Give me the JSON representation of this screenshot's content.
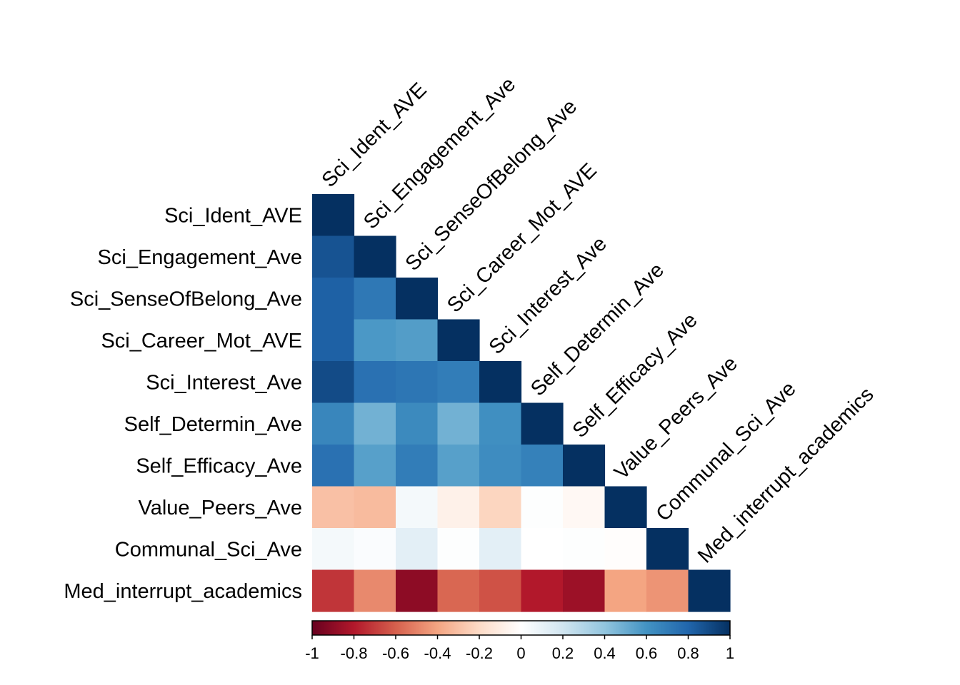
{
  "chart_data": {
    "type": "heatmap",
    "variables": [
      "Sci_Ident_AVE",
      "Sci_Engagement_Ave",
      "Sci_SenseOfBelong_Ave",
      "Sci_Career_Mot_AVE",
      "Sci_Interest_Ave",
      "Self_Determin_Ave",
      "Self_Efficacy_Ave",
      "Value_Peers_Ave",
      "Communal_Sci_Ave",
      "Med_interrupt_academics"
    ],
    "matrix_lower": [
      [
        1
      ],
      [
        0.87,
        1
      ],
      [
        0.82,
        0.72,
        1
      ],
      [
        0.82,
        0.58,
        0.56,
        1
      ],
      [
        0.9,
        0.75,
        0.73,
        0.7,
        1
      ],
      [
        0.66,
        0.48,
        0.64,
        0.48,
        0.62,
        1
      ],
      [
        0.75,
        0.55,
        0.7,
        0.55,
        0.63,
        0.68,
        1
      ],
      [
        -0.3,
        -0.32,
        0.05,
        -0.08,
        -0.22,
        0.01,
        -0.04,
        1
      ],
      [
        0.05,
        0.02,
        0.12,
        0.01,
        0.12,
        0.0,
        0.01,
        -0.01,
        1
      ],
      [
        -0.72,
        -0.48,
        -0.9,
        -0.58,
        -0.64,
        -0.8,
        -0.86,
        -0.4,
        -0.45,
        1
      ]
    ],
    "colorbar": {
      "range": [
        -1,
        1
      ],
      "ticks": [
        "-1",
        "-0.8",
        "-0.6",
        "-0.4",
        "-0.2",
        "0",
        "0.2",
        "0.4",
        "0.6",
        "0.8",
        "1"
      ]
    },
    "colors": {
      "strong_negative": "#67001F",
      "negative": "#B2182B",
      "mid_negative": "#D6604D",
      "light_negative": "#F4A582",
      "pale_negative": "#FDDBC7",
      "neutral": "#FFFFFF",
      "pale_positive": "#D1E5F0",
      "light_positive": "#92C5DE",
      "mid_positive": "#4393C3",
      "positive": "#2166AC",
      "strong_positive": "#053061"
    }
  }
}
